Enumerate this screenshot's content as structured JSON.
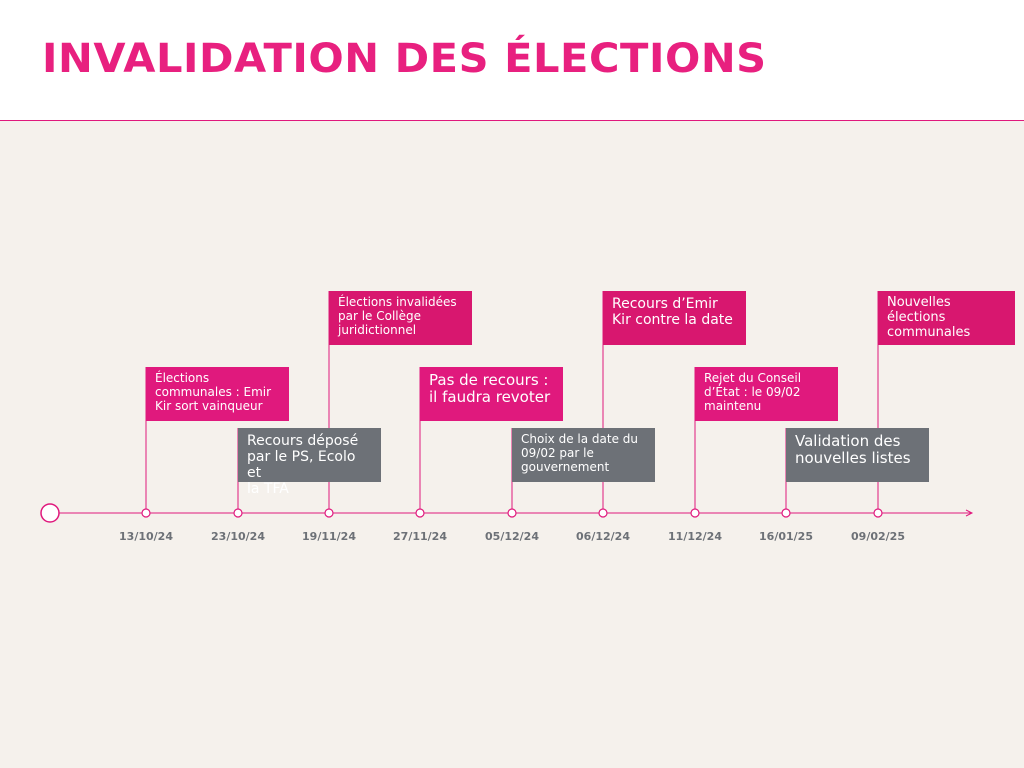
{
  "header": {
    "title": "INVALIDATION DES ÉLECTIONS"
  },
  "timeline": {
    "events": [
      {
        "date": "13/10/24",
        "lines": [
          "Élections",
          "communales : Emir",
          "Kir sort vainqueur"
        ],
        "color": "#e0197d"
      },
      {
        "date": "23/10/24",
        "lines": [
          "Recours déposé",
          "par le PS, Ecolo et",
          "la TFA"
        ],
        "color": "#6d7177"
      },
      {
        "date": "19/11/24",
        "lines": [
          "Élections invalidées",
          "par le Collège",
          "juridictionnel"
        ],
        "color": "#d8176f"
      },
      {
        "date": "27/11/24",
        "lines": [
          "Pas de recours :",
          "il faudra revoter"
        ],
        "color": "#e0197d"
      },
      {
        "date": "05/12/24",
        "lines": [
          "Choix de la date du",
          "09/02 par le",
          "gouvernement"
        ],
        "color": "#6d7177"
      },
      {
        "date": "06/12/24",
        "lines": [
          "Recours d’Emir",
          "Kir contre la date"
        ],
        "color": "#d8176f"
      },
      {
        "date": "11/12/24",
        "lines": [
          "Rejet du Conseil",
          "d’État : le 09/02",
          "maintenu"
        ],
        "color": "#e0197d"
      },
      {
        "date": "16/01/25",
        "lines": [
          "Validation des",
          "nouvelles listes"
        ],
        "color": "#6d7177"
      },
      {
        "date": "09/02/25",
        "lines": [
          "Nouvelles",
          "élections",
          "communales"
        ],
        "color": "#d8176f"
      }
    ]
  }
}
